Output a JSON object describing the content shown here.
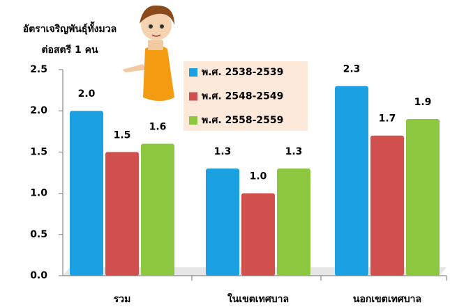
{
  "chart_data": {
    "type": "bar",
    "ylabel": [
      "อัตราเจริญพันธุ์ทั้งมวล",
      "ต่อสตรี 1 คน"
    ],
    "categories": [
      "รวม",
      "ในเขตเทศบาล",
      "นอกเขตเทศบาล"
    ],
    "series": [
      {
        "name": "พ.ศ. 2538-2539",
        "color": "#1ba1e2",
        "values": [
          2.0,
          1.3,
          2.3
        ],
        "value_labels": [
          "2.0",
          "1.3",
          "2.3"
        ]
      },
      {
        "name": "พ.ศ. 2548-2549",
        "color": "#d0504e",
        "values": [
          1.5,
          1.0,
          1.7
        ],
        "value_labels": [
          "1.5",
          "1.0",
          "1.7"
        ]
      },
      {
        "name": "พ.ศ. 2558-2559",
        "color": "#8dc63f",
        "values": [
          1.6,
          1.3,
          1.9
        ],
        "value_labels": [
          "1.6",
          "1.3",
          "1.9"
        ]
      }
    ],
    "ylim": [
      0,
      2.5
    ],
    "yticks": [
      {
        "value": 0,
        "label": "0.0"
      },
      0.5,
      {
        "value": 1,
        "label": "1.0"
      },
      1.5,
      {
        "value": 2,
        "label": "2.0"
      },
      2.5
    ],
    "legend": "top"
  }
}
